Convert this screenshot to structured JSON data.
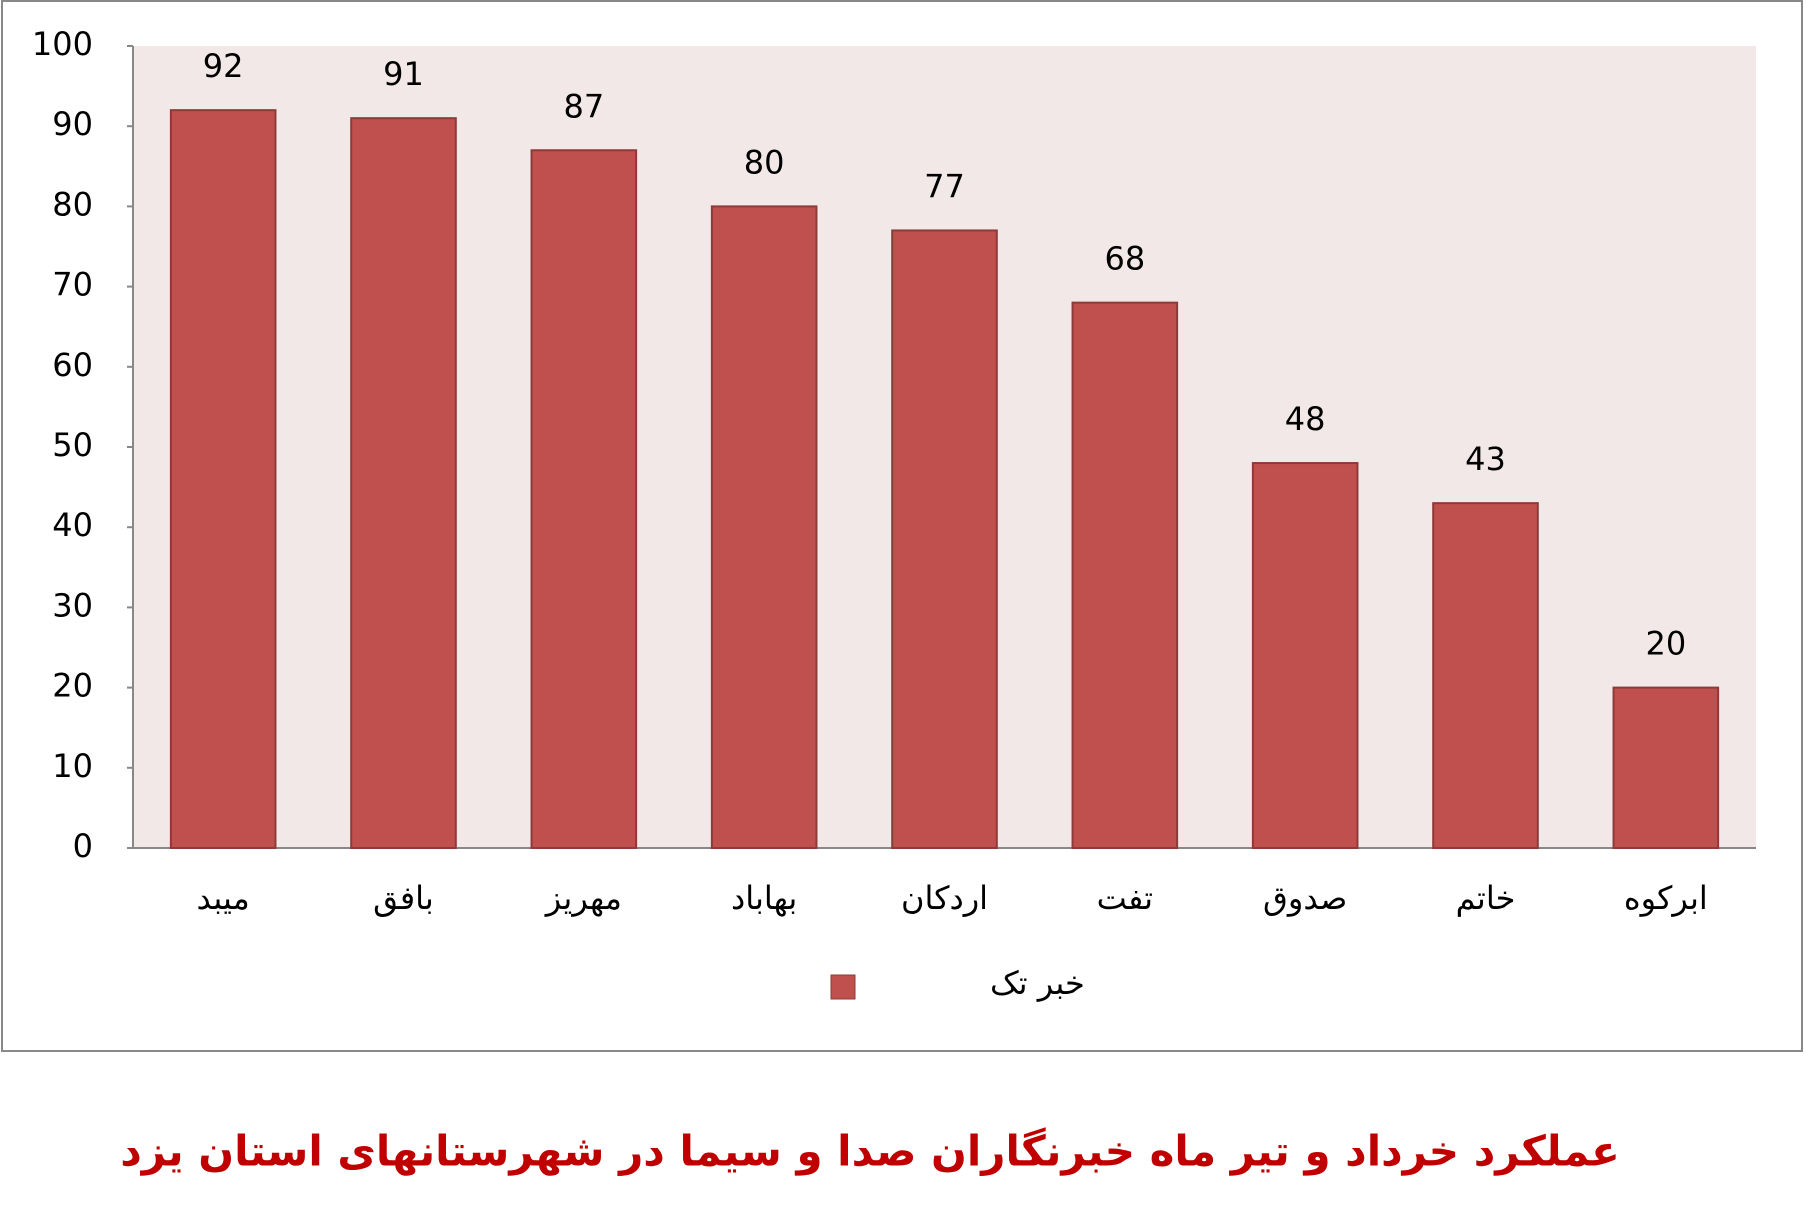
{
  "chart_data": {
    "type": "bar",
    "title": "عملکرد خرداد و تیر ماه خبرنگاران صدا و سیما در شهرستانهای استان یزد",
    "categories": [
      "میبد",
      "بافق",
      "مهریز",
      "بهاباد",
      "اردکان",
      "تفت",
      "صدوق",
      "خاتم",
      "ابرکوه"
    ],
    "series": [
      {
        "name": "خبر تک",
        "color": "#c0504d",
        "values": [
          92,
          91,
          87,
          80,
          77,
          68,
          48,
          43,
          20
        ]
      }
    ],
    "ylim": [
      0,
      100
    ],
    "yticks": [
      0,
      10,
      20,
      30,
      40,
      50,
      60,
      70,
      80,
      90,
      100
    ],
    "legend": "bottom",
    "data_labels": true
  }
}
